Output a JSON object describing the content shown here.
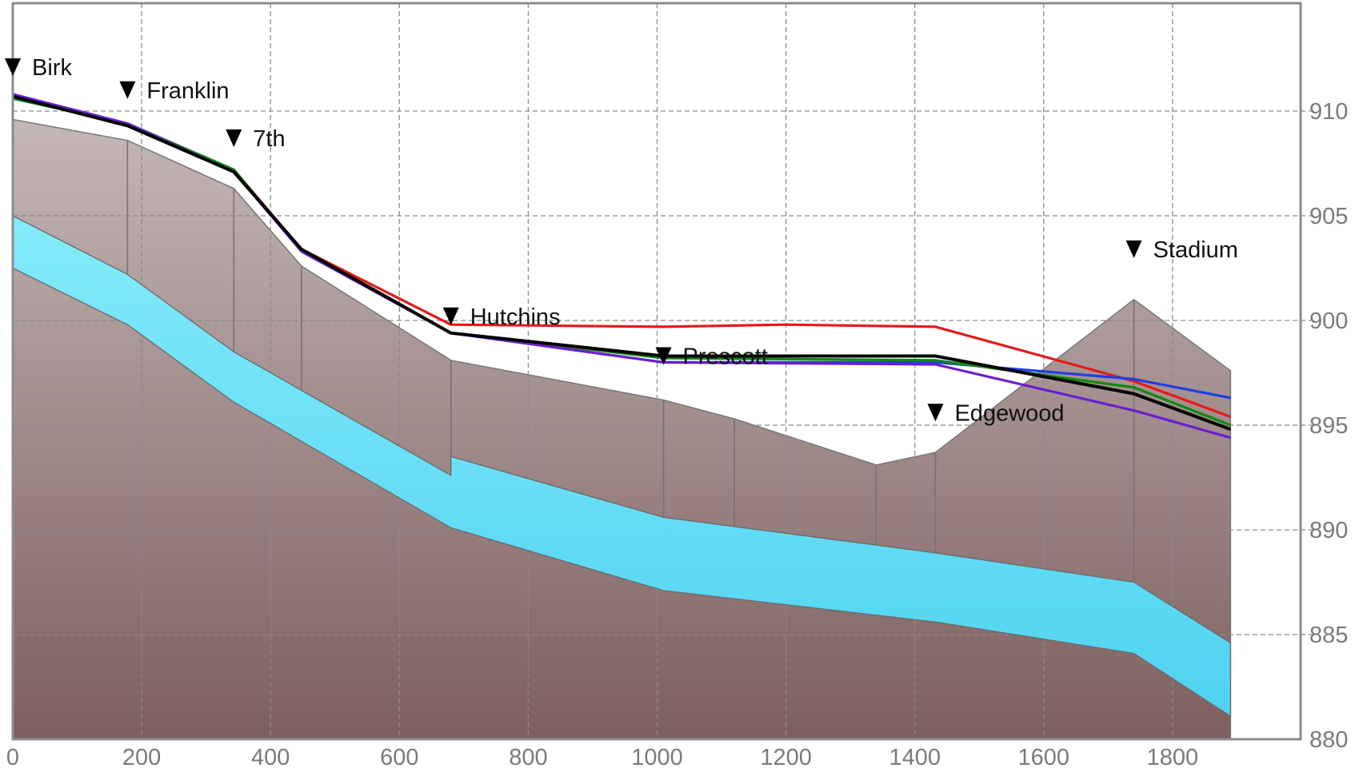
{
  "chart_data": {
    "type": "line",
    "title": "",
    "xlabel": "",
    "ylabel": "",
    "xlim": [
      0,
      2000
    ],
    "ylim": [
      880,
      915
    ],
    "x_ticks": [
      0,
      200,
      400,
      600,
      800,
      1000,
      1200,
      1400,
      1600,
      1800
    ],
    "y_ticks": [
      880,
      885,
      890,
      895,
      900,
      905,
      910
    ],
    "x_tick_labels": [
      "0",
      "200",
      "400",
      "600",
      "800",
      "1000",
      "1200",
      "1400",
      "1600",
      "1800"
    ],
    "y_tick_labels": [
      "880",
      "885",
      "890",
      "895",
      "900",
      "905",
      "910"
    ],
    "grid": true,
    "y_axis_side": "right",
    "manholes": [
      {
        "label": "Birk",
        "x": 0,
        "marker_y": 912.1,
        "rim": 909.6
      },
      {
        "label": "Franklin",
        "x": 178,
        "marker_y": 911.0,
        "rim": 908.6
      },
      {
        "label": "7th",
        "x": 343,
        "marker_y": 908.7,
        "rim": 906.3
      },
      {
        "label": "",
        "x": 448,
        "marker_y": null,
        "rim": 902.6
      },
      {
        "label": "Hutchins",
        "x": 680,
        "marker_y": 900.2,
        "rim": 898.1
      },
      {
        "label": "Prescott",
        "x": 1010,
        "marker_y": 898.3,
        "rim": 896.2
      },
      {
        "label": "",
        "x": 1120,
        "marker_y": null,
        "rim": 895.3
      },
      {
        "label": "",
        "x": 1340,
        "marker_y": null,
        "rim": 893.1
      },
      {
        "label": "Edgewood",
        "x": 1432,
        "marker_y": 895.6,
        "rim": 893.7
      },
      {
        "label": "Stadium",
        "x": 1740,
        "marker_y": 903.4,
        "rim": 901.0
      },
      {
        "label": "",
        "x": 1890,
        "marker_y": null,
        "rim": 897.6
      }
    ],
    "pipe": {
      "x": [
        0,
        178,
        343,
        680,
        680,
        1010,
        1432,
        1740,
        1890
      ],
      "crown": [
        905.0,
        902.2,
        898.5,
        892.6,
        893.5,
        890.6,
        888.9,
        887.5,
        884.6
      ],
      "invert": [
        902.5,
        899.8,
        896.1,
        890.1,
        890.1,
        887.1,
        885.6,
        884.1,
        881.1
      ]
    },
    "series": [
      {
        "color": "#e61919",
        "x": [
          0,
          178,
          343,
          448,
          680,
          1010,
          1200,
          1432,
          1740,
          1890
        ],
        "y": [
          910.8,
          909.4,
          907.2,
          903.4,
          899.8,
          899.7,
          899.8,
          899.7,
          897.1,
          895.4
        ]
      },
      {
        "color": "#1f3fe0",
        "x": [
          0,
          178,
          343,
          448,
          680,
          1010,
          1432,
          1740,
          1890
        ],
        "y": [
          910.8,
          909.4,
          907.2,
          903.3,
          899.4,
          898.0,
          898.0,
          897.2,
          896.3
        ]
      },
      {
        "color": "#128a12",
        "x": [
          0,
          178,
          343,
          448,
          680,
          1010,
          1432,
          1740,
          1890
        ],
        "y": [
          910.6,
          909.4,
          907.2,
          903.3,
          899.4,
          898.2,
          898.1,
          896.8,
          895.0
        ]
      },
      {
        "color": "#6a1fd0",
        "x": [
          0,
          178,
          343,
          448,
          680,
          1010,
          1432,
          1740,
          1890
        ],
        "y": [
          910.8,
          909.4,
          907.1,
          903.3,
          899.4,
          898.0,
          897.9,
          895.7,
          894.4
        ]
      },
      {
        "color": "#000000",
        "x": [
          0,
          178,
          343,
          448,
          680,
          1010,
          1432,
          1740,
          1890
        ],
        "y": [
          910.7,
          909.3,
          907.1,
          903.4,
          899.4,
          898.3,
          898.3,
          896.5,
          894.8
        ]
      }
    ],
    "colors": {
      "ground_light": "#c4b7b7",
      "ground_dark": "#7e5f5f",
      "pipe_light": "#7fe8fb",
      "pipe_dark": "#53d4f1",
      "grid": "#8a8a8a",
      "frame": "#8c8c8c",
      "tick_text": "#7a7a7a"
    }
  }
}
